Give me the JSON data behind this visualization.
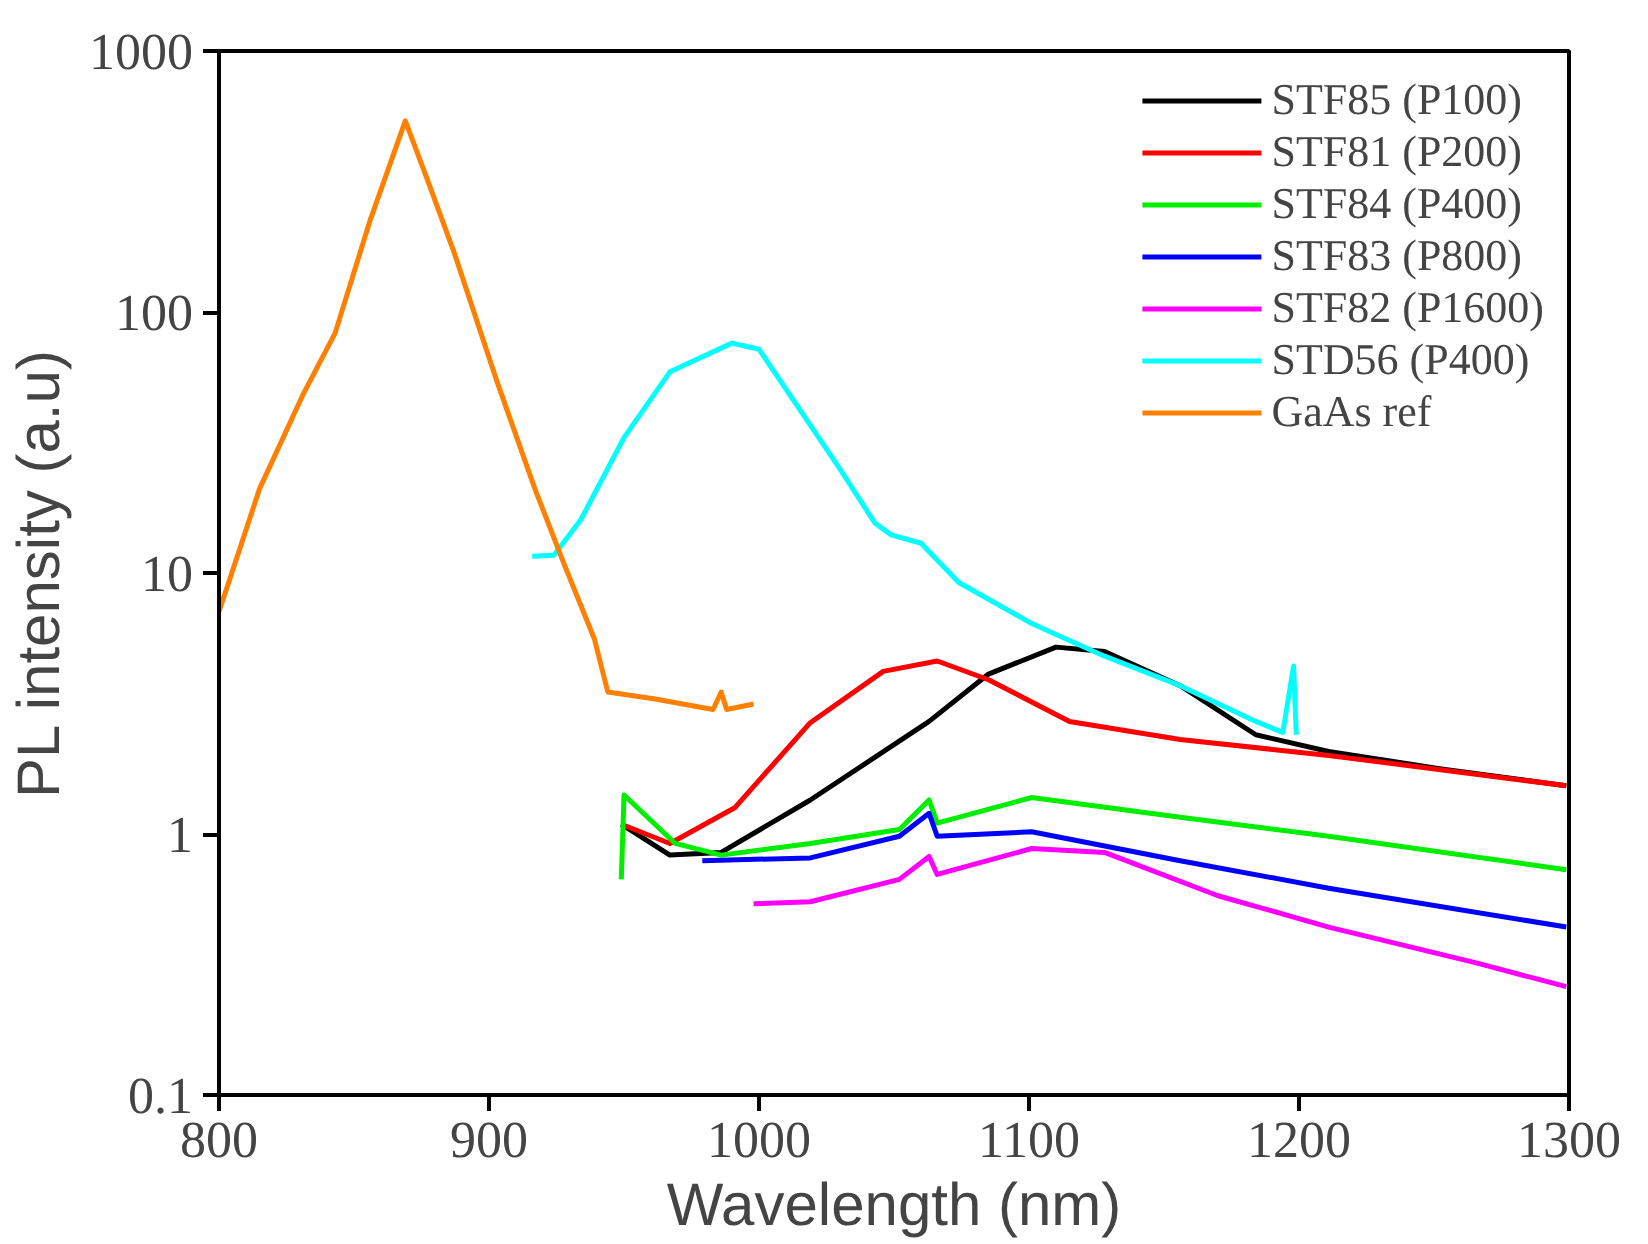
{
  "chart_data": {
    "type": "line",
    "xlabel": "Wavelength (nm)",
    "ylabel": "PL intensity (a.u)",
    "log": "y",
    "xlim": [
      800,
      1300
    ],
    "ylim": [
      0.1,
      1000
    ],
    "xticks": [
      800,
      900,
      1000,
      1100,
      1200,
      1300
    ],
    "yticks": [
      0.1,
      1,
      10,
      100,
      1000
    ],
    "grid": false,
    "legend": "top right",
    "line_style": "solid",
    "marker": "none",
    "series": [
      {
        "name": "STF85 (P100)",
        "color": "#000000",
        "x": [
          949,
          967,
          986,
          1019,
          1063,
          1085,
          1110,
          1128,
          1156,
          1184,
          1211,
          1252,
          1299
        ],
        "values": [
          1.09,
          0.83,
          0.85,
          1.35,
          2.7,
          4.1,
          5.2,
          5.0,
          3.7,
          2.4,
          2.07,
          1.78,
          1.53
        ]
      },
      {
        "name": "STF81 (P200)",
        "color": "#ff0000",
        "x": [
          949,
          967,
          991,
          1019,
          1046,
          1066,
          1085,
          1115,
          1156,
          1211,
          1299
        ],
        "values": [
          1.09,
          0.92,
          1.26,
          2.67,
          4.2,
          4.6,
          3.9,
          2.7,
          2.3,
          2.0,
          1.53
        ]
      },
      {
        "name": "STF84 (P400)",
        "color": "#00ee00",
        "x": [
          949,
          950,
          969,
          986,
          1019,
          1052,
          1063,
          1066,
          1101,
          1156,
          1211,
          1299
        ],
        "values": [
          0.67,
          1.41,
          0.92,
          0.83,
          0.92,
          1.04,
          1.35,
          1.1,
          1.38,
          1.16,
          0.98,
          0.73
        ]
      },
      {
        "name": "STF83 (P800)",
        "color": "#0000ff",
        "x": [
          979,
          1019,
          1052,
          1063,
          1066,
          1101,
          1156,
          1211,
          1299
        ],
        "values": [
          0.79,
          0.81,
          0.98,
          1.2,
          0.98,
          1.02,
          0.79,
          0.62,
          0.44
        ]
      },
      {
        "name": "STF82 (P1600)",
        "color": "#ff00ff",
        "x": [
          998,
          1019,
          1052,
          1063,
          1066,
          1101,
          1128,
          1170,
          1211,
          1266,
          1299
        ],
        "values": [
          0.54,
          0.55,
          0.67,
          0.82,
          0.7,
          0.88,
          0.85,
          0.58,
          0.44,
          0.32,
          0.26
        ]
      },
      {
        "name": "STD56 (P400)",
        "color": "#00ffff",
        "x": [
          916,
          924,
          934,
          950,
          967,
          990,
          1000,
          1016,
          1030,
          1043,
          1049,
          1060,
          1074,
          1101,
          1128,
          1156,
          1184,
          1194,
          1198,
          1199
        ],
        "values": [
          11.6,
          11.7,
          16,
          33,
          59,
          76,
          72,
          41,
          25,
          15.5,
          14,
          13,
          9.2,
          6.4,
          4.8,
          3.7,
          2.7,
          2.45,
          4.4,
          2.4
        ]
      },
      {
        "name": "GaAs ref",
        "color": "#ff8000",
        "x": [
          800,
          815,
          831,
          843,
          856,
          869,
          877,
          887,
          903,
          917,
          928,
          939,
          944,
          961,
          983,
          986,
          988,
          998
        ],
        "values": [
          7.1,
          21,
          48,
          83,
          225,
          540,
          325,
          170,
          54,
          21,
          10.7,
          5.6,
          3.5,
          3.3,
          3.0,
          3.5,
          3.0,
          3.15
        ]
      }
    ]
  }
}
